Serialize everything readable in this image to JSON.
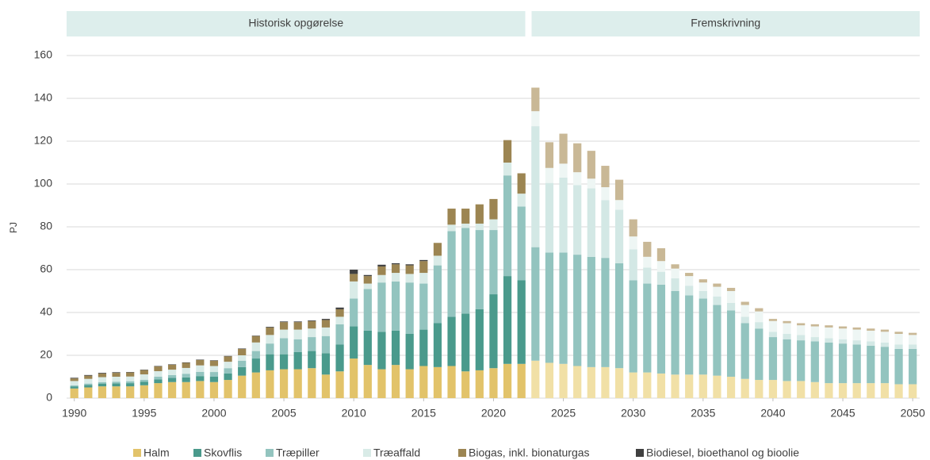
{
  "chart_data": {
    "type": "stacked-bar",
    "y_label": "PJ",
    "periods": [
      {
        "label": "Historisk opgørelse",
        "from": 1990,
        "to": 2022
      },
      {
        "label": "Fremskrivning",
        "from": 2023,
        "to": 2050
      }
    ],
    "x": [
      1990,
      1991,
      1992,
      1993,
      1994,
      1995,
      1996,
      1997,
      1998,
      1999,
      2000,
      2001,
      2002,
      2003,
      2004,
      2005,
      2006,
      2007,
      2008,
      2009,
      2010,
      2011,
      2012,
      2013,
      2014,
      2015,
      2016,
      2017,
      2018,
      2019,
      2020,
      2021,
      2022,
      2023,
      2024,
      2025,
      2026,
      2027,
      2028,
      2029,
      2030,
      2031,
      2032,
      2033,
      2034,
      2035,
      2036,
      2037,
      2038,
      2039,
      2040,
      2041,
      2042,
      2043,
      2044,
      2045,
      2046,
      2047,
      2048,
      2049,
      2050
    ],
    "series": [
      {
        "name": "Halm",
        "color": "#e2c36a",
        "projection_color": "#f1e0a6",
        "values": [
          4.5,
          5,
          5.5,
          5.5,
          5.5,
          6,
          7,
          7.5,
          7.5,
          8,
          7.5,
          8.5,
          10.5,
          12,
          13,
          13.5,
          13.5,
          14,
          11,
          12.5,
          18.5,
          15.5,
          13.5,
          15.5,
          13.5,
          15,
          14.5,
          15,
          12.5,
          13,
          14,
          16,
          16,
          17.5,
          16.5,
          16,
          15,
          14.5,
          14.5,
          14,
          12,
          12,
          11.5,
          11,
          11,
          11,
          10.5,
          10,
          9,
          8.5,
          8.5,
          8,
          8,
          7.5,
          7,
          7,
          7,
          7,
          7,
          6.5,
          6.5
        ]
      },
      {
        "name": "Skovflis",
        "color": "#4a9a8c",
        "projection_color": "#93c4bf",
        "values": [
          1,
          1.2,
          1.3,
          1.4,
          1.5,
          1.6,
          1.8,
          2,
          2.2,
          2.3,
          2.5,
          3,
          4,
          6.5,
          7.5,
          7,
          8,
          8,
          10,
          12.5,
          15,
          16,
          17.5,
          16,
          16.5,
          17,
          20.5,
          23,
          27,
          28.5,
          34.5,
          41,
          39,
          53,
          51.5,
          52,
          52,
          51.5,
          51,
          49,
          43,
          41.5,
          41.5,
          39,
          37,
          35.5,
          33,
          31,
          26,
          24,
          20,
          19.5,
          19,
          19,
          19,
          18.5,
          18,
          17.5,
          17,
          16.5,
          16.5
        ]
      },
      {
        "name": "Træpiller",
        "color": "#93c4bf",
        "projection_color": "#d3e8e5",
        "values": [
          0.5,
          0.6,
          0.7,
          0.8,
          0.9,
          1,
          1.2,
          1.3,
          1.7,
          2,
          2.2,
          2.5,
          3,
          3.5,
          5,
          7.5,
          6,
          6.5,
          8,
          9.5,
          13,
          19.5,
          23,
          23,
          24,
          21.5,
          27,
          40,
          40,
          37,
          30,
          47,
          34.5,
          56.5,
          32.5,
          35,
          32.5,
          32,
          27,
          25,
          14.5,
          7.5,
          6,
          6,
          4.5,
          3.5,
          4,
          3.5,
          3,
          3,
          2.5,
          2.5,
          2.5,
          2,
          2,
          2,
          2,
          2,
          2,
          2,
          2
        ]
      },
      {
        "name": "Træaffald",
        "color": "#d9ebe7",
        "projection_color": "#eef6f4",
        "values": [
          2,
          2.2,
          2.3,
          2.3,
          2.2,
          2.5,
          2.6,
          2.5,
          2.7,
          3,
          2.8,
          3,
          2.5,
          4,
          4,
          4,
          4.5,
          4,
          4,
          3.5,
          8,
          2.5,
          3.5,
          4,
          4,
          5,
          4.5,
          3,
          2,
          3,
          5,
          6,
          6,
          7,
          7,
          6.5,
          6,
          4.5,
          6,
          4.5,
          6,
          5,
          5,
          4.5,
          4.5,
          4,
          4.5,
          5.5,
          5.5,
          5,
          5,
          5,
          4.5,
          5,
          5,
          5,
          5,
          5,
          5,
          5,
          4.5
        ]
      },
      {
        "name": "Biogas, inkl. bionaturgas",
        "color": "#9c8552",
        "projection_color": "#c9b896",
        "values": [
          1.2,
          1.5,
          1.7,
          1.8,
          1.9,
          2,
          2.2,
          2.3,
          2.4,
          2.5,
          2.5,
          2.5,
          3,
          3,
          3.5,
          3.5,
          3.5,
          3.5,
          3.5,
          3.5,
          3.5,
          3.5,
          4,
          4,
          4,
          5.5,
          6,
          7.5,
          7,
          9,
          9.5,
          10.5,
          9.5,
          11,
          12,
          14,
          13.5,
          13,
          10,
          9.5,
          8,
          7,
          6,
          2,
          1.5,
          1.5,
          1.5,
          1.5,
          1.5,
          1.5,
          1,
          1,
          1,
          1,
          1,
          1,
          1,
          1,
          1,
          1,
          1
        ]
      },
      {
        "name": "Biodiesel, bioethanol og bioolie",
        "color": "#404040",
        "projection_color": "#8c8c8c",
        "values": [
          0.3,
          0.3,
          0.3,
          0.3,
          0.2,
          0.2,
          0.2,
          0.2,
          0.2,
          0.2,
          0.2,
          0.2,
          0.2,
          0.2,
          0.3,
          0.3,
          0.3,
          0.3,
          0.5,
          0.8,
          2,
          0.5,
          0.8,
          0.5,
          0.5,
          0.5,
          0,
          0,
          0,
          0,
          0,
          0,
          0,
          0,
          0,
          0,
          0,
          0,
          0,
          0,
          0,
          0,
          0,
          0,
          0,
          0,
          0,
          0,
          0,
          0,
          0,
          0,
          0,
          0,
          0,
          0,
          0,
          0,
          0,
          0,
          0
        ]
      }
    ],
    "xlim": [
      1989.45,
      2050.5
    ],
    "xticks": [
      1990,
      1995,
      2000,
      2005,
      2010,
      2015,
      2020,
      2025,
      2030,
      2035,
      2040,
      2045,
      2050
    ],
    "ylim": [
      0,
      160
    ],
    "yticks": [
      0,
      20,
      40,
      60,
      80,
      100,
      120,
      140,
      160
    ],
    "grid": true
  }
}
